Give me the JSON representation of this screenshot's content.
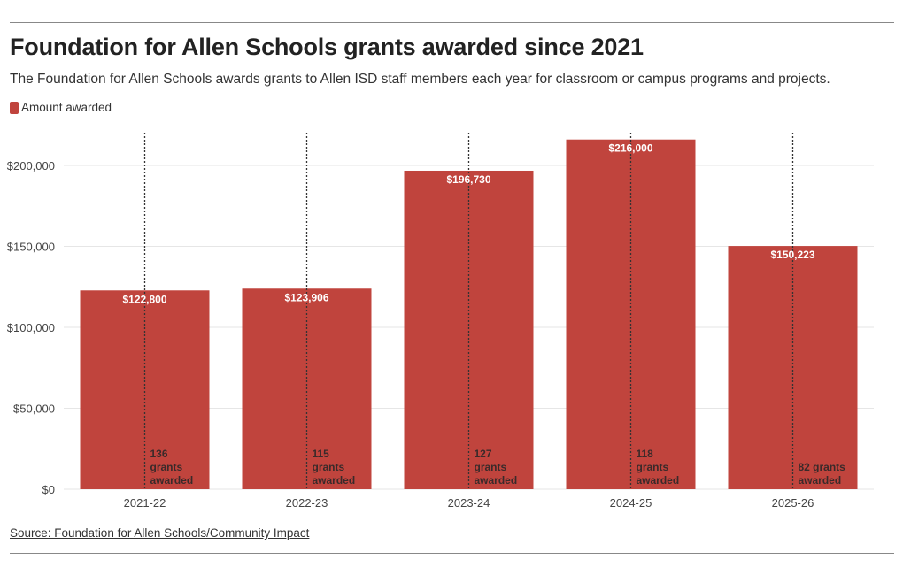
{
  "header": {
    "title": "Foundation for Allen Schools grants awarded since 2021",
    "subtitle": "The Foundation for Allen Schools awards grants to Allen ISD staff members each year for classroom or campus programs and projects."
  },
  "legend": {
    "label": "Amount awarded",
    "color": "#c0443d"
  },
  "footer": {
    "source": "Source: Foundation for Allen Schools/Community Impact"
  },
  "chart_data": {
    "type": "bar",
    "title": "Foundation for Allen Schools grants awarded since 2021",
    "xlabel": "",
    "ylabel": "",
    "ylim": [
      0,
      220000
    ],
    "yticks": [
      0,
      50000,
      100000,
      150000,
      200000
    ],
    "ytick_labels": [
      "$0",
      "$50,000",
      "$100,000",
      "$150,000",
      "$200,000"
    ],
    "categories": [
      "2021-22",
      "2022-23",
      "2023-24",
      "2024-25",
      "2025-26"
    ],
    "series": [
      {
        "name": "Amount awarded",
        "color": "#c0443d",
        "values": [
          122800,
          123906,
          196730,
          216000,
          150223
        ],
        "labels": [
          "$122,800",
          "$123,906",
          "$196,730",
          "$216,000",
          "$150,223"
        ]
      }
    ],
    "annotations": [
      [
        "136",
        "grants",
        "awarded"
      ],
      [
        "115",
        "grants",
        "awarded"
      ],
      [
        "127",
        "grants",
        "awarded"
      ],
      [
        "118",
        "grants",
        "awarded"
      ],
      [
        "82 grants",
        "awarded"
      ]
    ],
    "grid": true,
    "legend_position": "top-left"
  }
}
